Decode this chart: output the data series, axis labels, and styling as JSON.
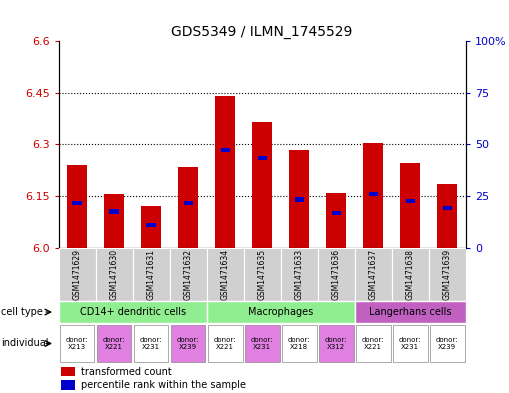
{
  "title": "GDS5349 / ILMN_1745529",
  "samples": [
    "GSM1471629",
    "GSM1471630",
    "GSM1471631",
    "GSM1471632",
    "GSM1471634",
    "GSM1471635",
    "GSM1471633",
    "GSM1471636",
    "GSM1471637",
    "GSM1471638",
    "GSM1471639"
  ],
  "red_values": [
    6.24,
    6.155,
    6.12,
    6.235,
    6.44,
    6.365,
    6.285,
    6.16,
    6.305,
    6.245,
    6.185
  ],
  "blue_values": [
    6.13,
    6.105,
    6.065,
    6.13,
    6.285,
    6.26,
    6.14,
    6.1,
    6.155,
    6.135,
    6.115
  ],
  "ymin": 6.0,
  "ymax": 6.6,
  "yticks_left": [
    6.0,
    6.15,
    6.3,
    6.45,
    6.6
  ],
  "yticks_right": [
    0,
    25,
    50,
    75,
    100
  ],
  "bar_color": "#cc0000",
  "blue_color": "#0000cc",
  "cell_types": [
    {
      "label": "CD14+ dendritic cells",
      "start": 0,
      "end": 4,
      "color": "#90ee90"
    },
    {
      "label": "Macrophages",
      "start": 4,
      "end": 8,
      "color": "#90ee90"
    },
    {
      "label": "Langerhans cells",
      "start": 8,
      "end": 11,
      "color": "#c060c0"
    }
  ],
  "individuals": [
    {
      "label": "donor:\nX213",
      "col": 0,
      "color": "#ffffff"
    },
    {
      "label": "donor:\nX221",
      "col": 1,
      "color": "#e080e0"
    },
    {
      "label": "donor:\nX231",
      "col": 2,
      "color": "#ffffff"
    },
    {
      "label": "donor:\nX239",
      "col": 3,
      "color": "#e080e0"
    },
    {
      "label": "donor:\nX221",
      "col": 4,
      "color": "#ffffff"
    },
    {
      "label": "donor:\nX231",
      "col": 5,
      "color": "#e080e0"
    },
    {
      "label": "donor:\nX218",
      "col": 6,
      "color": "#ffffff"
    },
    {
      "label": "donor:\nX312",
      "col": 7,
      "color": "#e080e0"
    },
    {
      "label": "donor:\nX221",
      "col": 8,
      "color": "#ffffff"
    },
    {
      "label": "donor:\nX231",
      "col": 9,
      "color": "#ffffff"
    },
    {
      "label": "donor:\nX239",
      "col": 10,
      "color": "#ffffff"
    }
  ],
  "bar_width": 0.55,
  "bg_color": "#ffffff",
  "tick_label_color_left": "#cc0000",
  "tick_label_color_right": "#0000cc",
  "sample_bg_color": "#d0d0d0",
  "legend_red_label": "transformed count",
  "legend_blue_label": "percentile rank within the sample",
  "cell_type_label": "cell type",
  "individual_label": "individual"
}
